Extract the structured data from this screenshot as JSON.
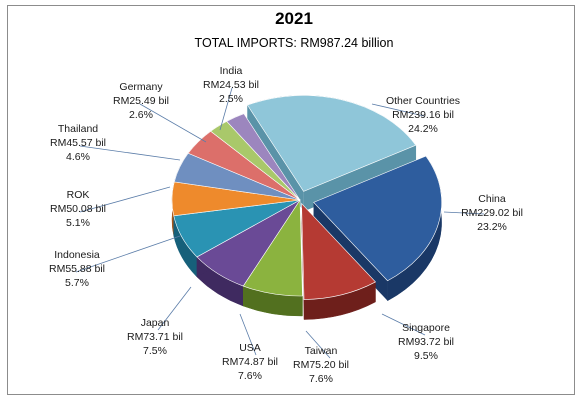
{
  "chart_data": {
    "type": "pie",
    "title": "2021",
    "subtitle": "TOTAL IMPORTS: RM987.24 billion",
    "slices": [
      {
        "label": "Other Countries",
        "value_text": "RM239.16 bil",
        "pct_text": "24.2%",
        "value": 239.16,
        "percent": 24.2,
        "color": "#8fc6d9",
        "dark": "#5a93a8"
      },
      {
        "label": "China",
        "value_text": "RM229.02 bil",
        "pct_text": "23.2%",
        "value": 229.02,
        "percent": 23.2,
        "color": "#2e5d9e",
        "dark": "#1a3866"
      },
      {
        "label": "Singapore",
        "value_text": "RM93.72 bil",
        "pct_text": "9.5%",
        "value": 93.72,
        "percent": 9.5,
        "color": "#b53a33",
        "dark": "#6e1f1b"
      },
      {
        "label": "Taiwan",
        "value_text": "RM75.20 bil",
        "pct_text": "7.6%",
        "value": 75.2,
        "percent": 7.6,
        "color": "#8bb33f",
        "dark": "#52701f"
      },
      {
        "label": "USA",
        "value_text": "RM74.87 bil",
        "pct_text": "7.6%",
        "value": 74.87,
        "percent": 7.6,
        "color": "#6a4a96",
        "dark": "#3f2a60"
      },
      {
        "label": "Japan",
        "value_text": "RM73.71 bil",
        "pct_text": "7.5%",
        "value": 73.71,
        "percent": 7.5,
        "color": "#2a93b3",
        "dark": "#16607a"
      },
      {
        "label": "Indonesia",
        "value_text": "RM55.88 bil",
        "pct_text": "5.7%",
        "value": 55.88,
        "percent": 5.7,
        "color": "#ee8a2c",
        "dark": "#a6561a"
      },
      {
        "label": "ROK",
        "value_text": "RM50.08 bil",
        "pct_text": "5.1%",
        "value": 50.08,
        "percent": 5.1,
        "color": "#6f8fc0",
        "dark": "#425f8a"
      },
      {
        "label": "Thailand",
        "value_text": "RM45.57 bil",
        "pct_text": "4.6%",
        "value": 45.57,
        "percent": 4.6,
        "color": "#dc6f6a",
        "dark": "#964440"
      },
      {
        "label": "Germany",
        "value_text": "RM25.49 bil",
        "pct_text": "2.6%",
        "value": 25.49,
        "percent": 2.6,
        "color": "#a9c86a",
        "dark": "#6c8a35"
      },
      {
        "label": "India",
        "value_text": "RM24.53 bil",
        "pct_text": "2.5%",
        "value": 24.53,
        "percent": 2.5,
        "color": "#9c86be",
        "dark": "#65528a"
      }
    ]
  }
}
